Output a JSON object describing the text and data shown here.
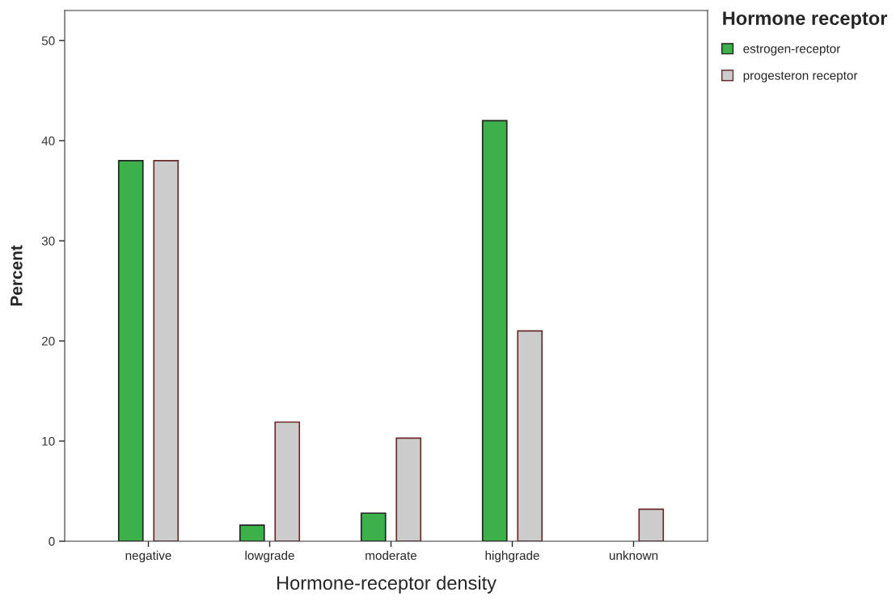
{
  "chart_data": {
    "type": "bar",
    "xlabel": "Hormone-receptor density",
    "ylabel": "Percent",
    "legend_title": "Hormone receptor",
    "categories": [
      "negative",
      "lowgrade",
      "moderate",
      "highgrade",
      "unknown"
    ],
    "series": [
      {
        "name": "estrogen-receptor",
        "color": "#3cb14a",
        "values": [
          38,
          1.6,
          2.8,
          42,
          null
        ]
      },
      {
        "name": "progesteron receptor",
        "color": "#cccccc",
        "values": [
          38,
          11.9,
          10.3,
          21,
          3.2
        ]
      }
    ],
    "ylim": [
      0,
      53
    ],
    "yticks": [
      0,
      10,
      20,
      30,
      40,
      50
    ],
    "grid": false,
    "legend": "top right"
  }
}
